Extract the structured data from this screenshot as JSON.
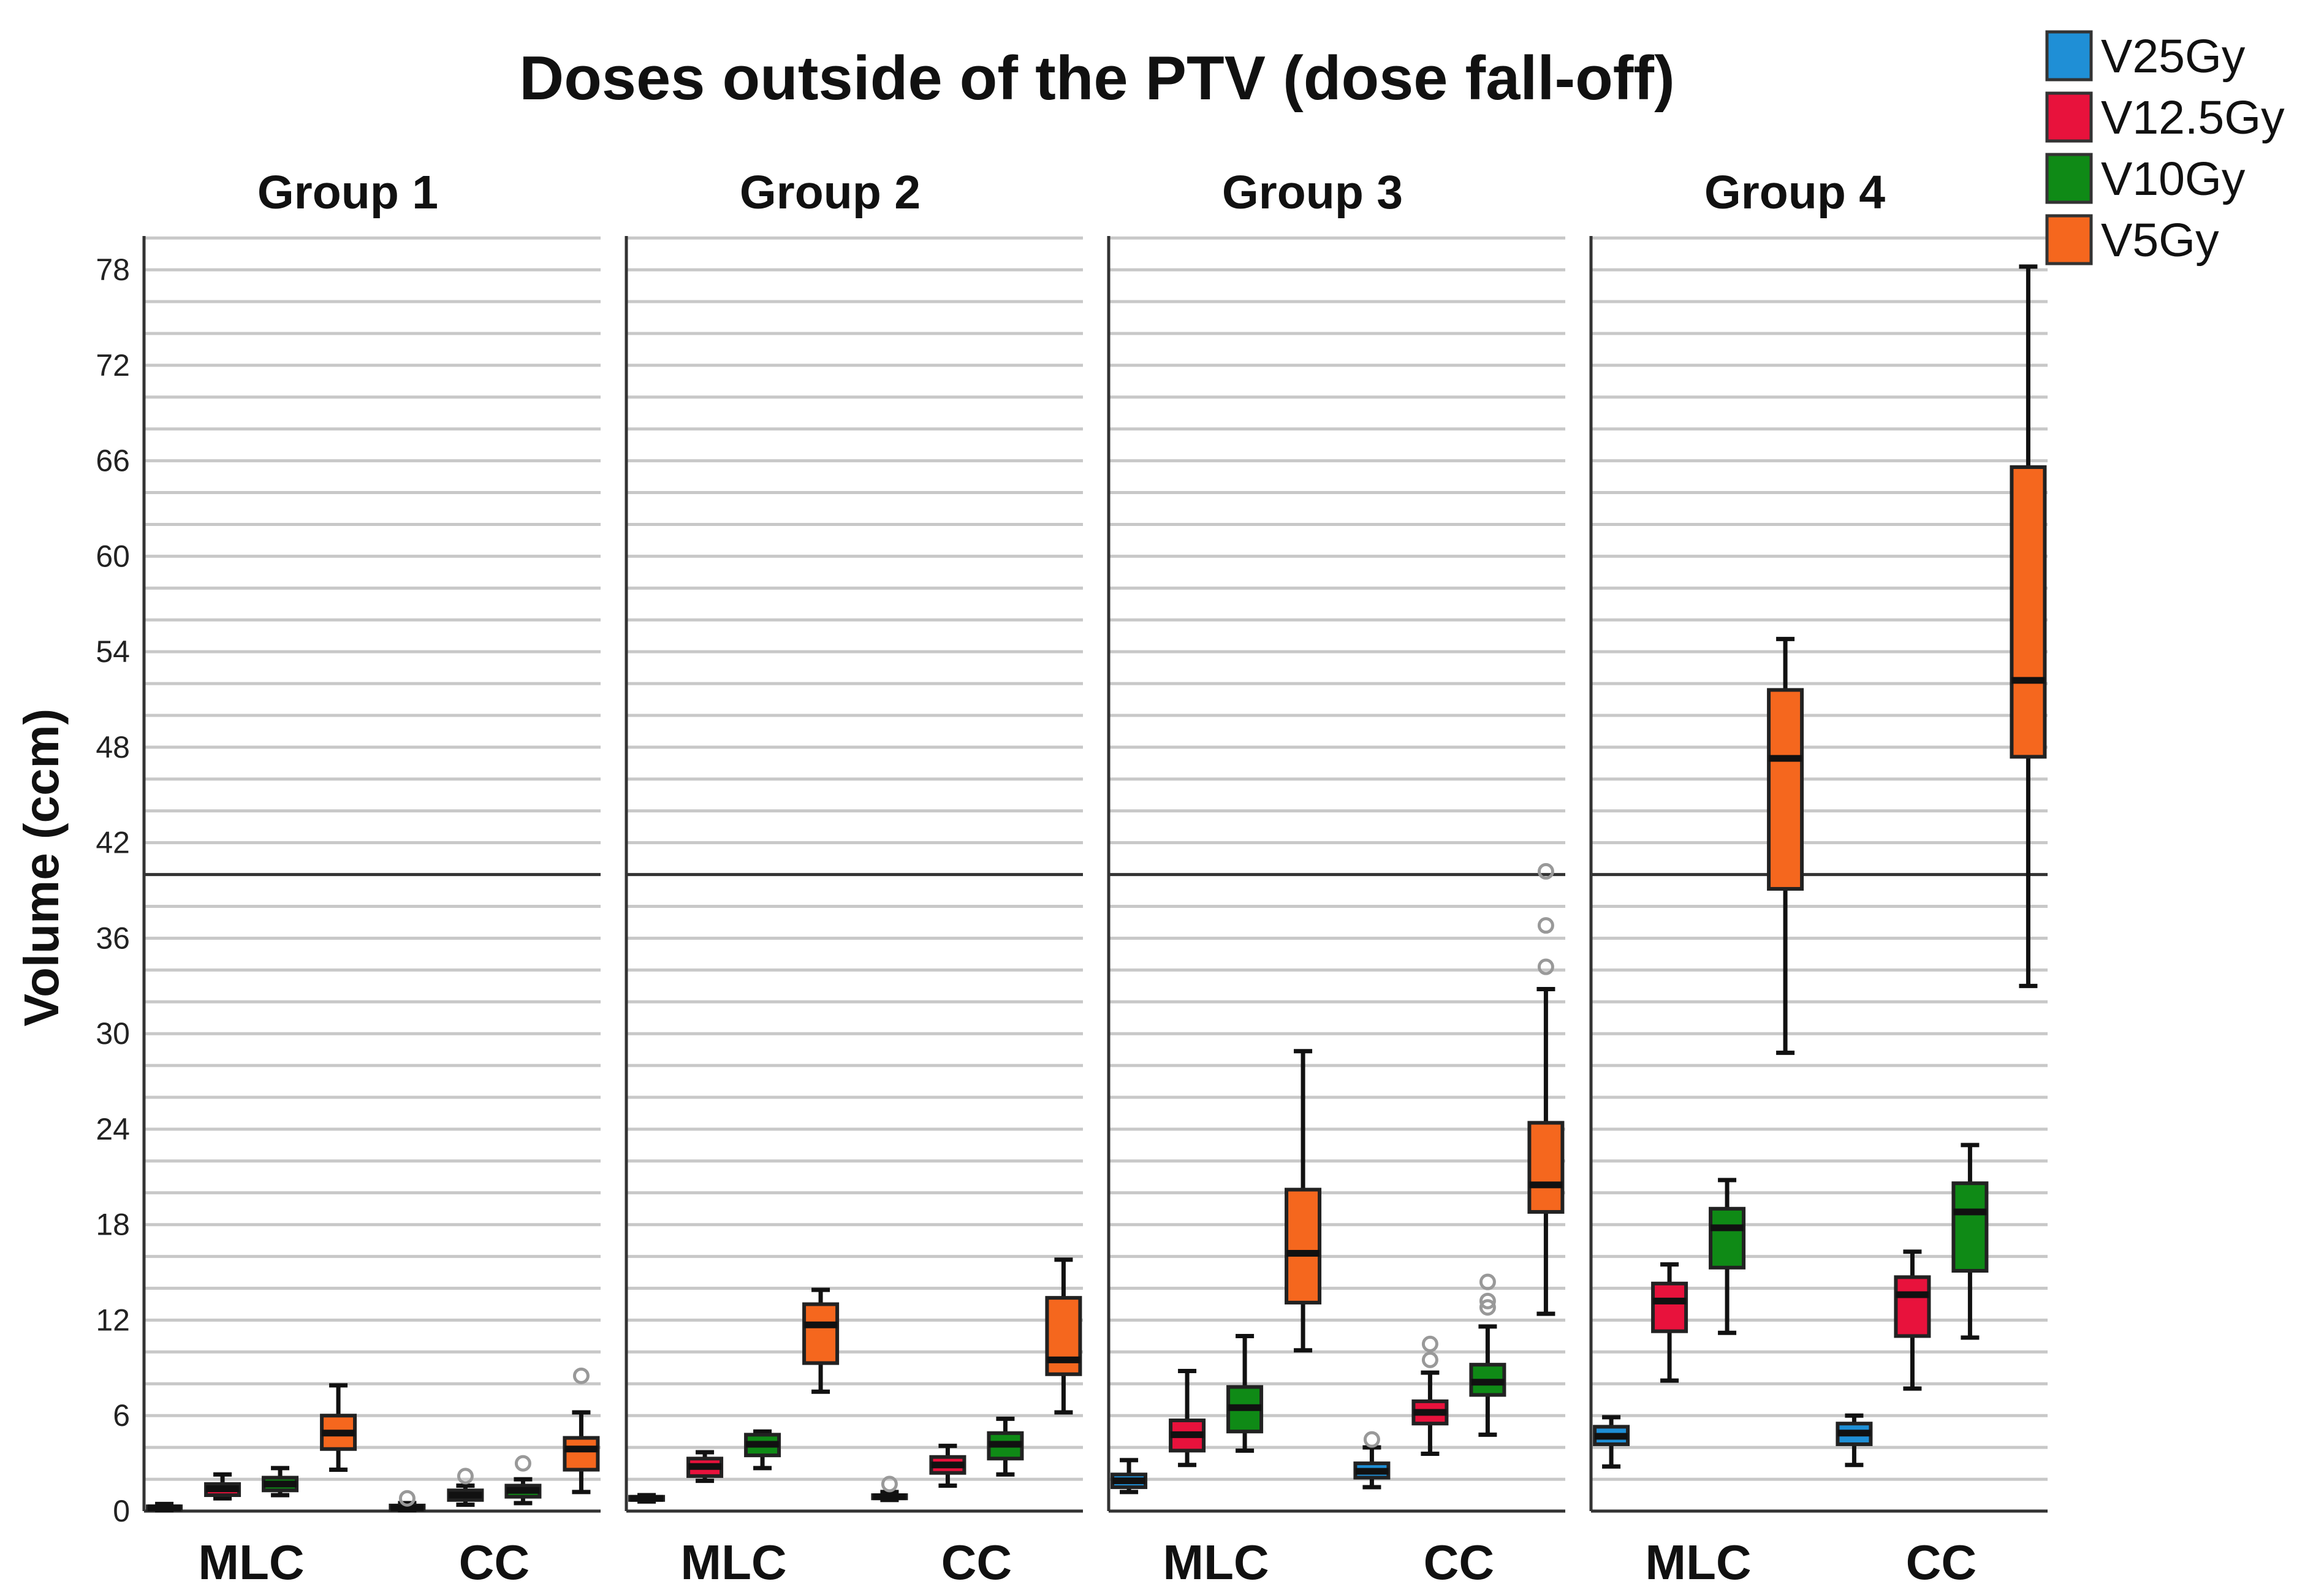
{
  "chart_data": {
    "type": "boxplot",
    "title": "Doses outside of the PTV (dose fall-off)",
    "ylabel": "Volume (ccm)",
    "xlabel": "",
    "ylim": [
      0,
      80
    ],
    "yticks": [
      0,
      6,
      12,
      18,
      24,
      30,
      36,
      42,
      48,
      54,
      60,
      66,
      72,
      78
    ],
    "grid": true,
    "reference_line": 40,
    "legend_position": "top-right",
    "series": [
      {
        "name": "V25Gy",
        "color": "#1f8fd6"
      },
      {
        "name": "V12.5Gy",
        "color": "#e8123c"
      },
      {
        "name": "V10Gy",
        "color": "#0f8a16"
      },
      {
        "name": "V5Gy",
        "color": "#f5671e"
      }
    ],
    "categories": [
      "MLC",
      "CC"
    ],
    "panels": [
      {
        "label": "Group 1",
        "groups": [
          {
            "category": "MLC",
            "boxes": [
              {
                "series": "V25Gy",
                "min": 0.05,
                "q1": 0.1,
                "median": 0.2,
                "q3": 0.3,
                "max": 0.45,
                "outliers": []
              },
              {
                "series": "V12.5Gy",
                "min": 0.8,
                "q1": 1.0,
                "median": 1.4,
                "q3": 1.7,
                "max": 2.3,
                "outliers": []
              },
              {
                "series": "V10Gy",
                "min": 1.0,
                "q1": 1.3,
                "median": 1.7,
                "q3": 2.1,
                "max": 2.7,
                "outliers": []
              },
              {
                "series": "V5Gy",
                "min": 2.6,
                "q1": 3.9,
                "median": 4.9,
                "q3": 6.0,
                "max": 7.9,
                "outliers": []
              }
            ]
          },
          {
            "category": "CC",
            "boxes": [
              {
                "series": "V25Gy",
                "min": 0.05,
                "q1": 0.1,
                "median": 0.2,
                "q3": 0.35,
                "max": 0.5,
                "outliers": [
                  0.8
                ]
              },
              {
                "series": "V12.5Gy",
                "min": 0.4,
                "q1": 0.7,
                "median": 1.0,
                "q3": 1.3,
                "max": 1.6,
                "outliers": [
                  2.2
                ]
              },
              {
                "series": "V10Gy",
                "min": 0.5,
                "q1": 0.9,
                "median": 1.3,
                "q3": 1.6,
                "max": 2.0,
                "outliers": [
                  3.0
                ]
              },
              {
                "series": "V5Gy",
                "min": 1.2,
                "q1": 2.6,
                "median": 3.9,
                "q3": 4.6,
                "max": 6.2,
                "outliers": [
                  8.5
                ]
              }
            ]
          }
        ]
      },
      {
        "label": "Group 2",
        "groups": [
          {
            "category": "MLC",
            "boxes": [
              {
                "series": "V25Gy",
                "min": 0.6,
                "q1": 0.7,
                "median": 0.8,
                "q3": 0.9,
                "max": 1.0,
                "outliers": []
              },
              {
                "series": "V12.5Gy",
                "min": 1.9,
                "q1": 2.2,
                "median": 2.8,
                "q3": 3.3,
                "max": 3.7,
                "outliers": []
              },
              {
                "series": "V10Gy",
                "min": 2.7,
                "q1": 3.5,
                "median": 4.2,
                "q3": 4.8,
                "max": 5.0,
                "outliers": []
              },
              {
                "series": "V5Gy",
                "min": 7.5,
                "q1": 9.3,
                "median": 11.7,
                "q3": 13.0,
                "max": 13.9,
                "outliers": []
              }
            ]
          },
          {
            "category": "CC",
            "boxes": [
              {
                "series": "V25Gy",
                "min": 0.7,
                "q1": 0.8,
                "median": 0.9,
                "q3": 1.0,
                "max": 1.2,
                "outliers": [
                  1.7
                ]
              },
              {
                "series": "V12.5Gy",
                "min": 1.6,
                "q1": 2.4,
                "median": 2.9,
                "q3": 3.4,
                "max": 4.1,
                "outliers": []
              },
              {
                "series": "V10Gy",
                "min": 2.3,
                "q1": 3.3,
                "median": 4.2,
                "q3": 4.9,
                "max": 5.8,
                "outliers": []
              },
              {
                "series": "V5Gy",
                "min": 6.2,
                "q1": 8.6,
                "median": 9.5,
                "q3": 13.4,
                "max": 15.8,
                "outliers": []
              }
            ]
          }
        ]
      },
      {
        "label": "Group 3",
        "groups": [
          {
            "category": "MLC",
            "boxes": [
              {
                "series": "V25Gy",
                "min": 1.2,
                "q1": 1.5,
                "median": 1.9,
                "q3": 2.3,
                "max": 3.2,
                "outliers": []
              },
              {
                "series": "V12.5Gy",
                "min": 2.9,
                "q1": 3.8,
                "median": 4.8,
                "q3": 5.7,
                "max": 8.8,
                "outliers": []
              },
              {
                "series": "V10Gy",
                "min": 3.8,
                "q1": 5.0,
                "median": 6.5,
                "q3": 7.8,
                "max": 11.0,
                "outliers": []
              },
              {
                "series": "V5Gy",
                "min": 10.1,
                "q1": 13.1,
                "median": 16.2,
                "q3": 20.2,
                "max": 28.9,
                "outliers": []
              }
            ]
          },
          {
            "category": "CC",
            "boxes": [
              {
                "series": "V25Gy",
                "min": 1.5,
                "q1": 2.1,
                "median": 2.5,
                "q3": 3.0,
                "max": 4.0,
                "outliers": [
                  4.5
                ]
              },
              {
                "series": "V12.5Gy",
                "min": 3.6,
                "q1": 5.5,
                "median": 6.2,
                "q3": 6.9,
                "max": 8.7,
                "outliers": [
                  9.5,
                  10.5
                ]
              },
              {
                "series": "V10Gy",
                "min": 4.8,
                "q1": 7.3,
                "median": 8.1,
                "q3": 9.2,
                "max": 11.6,
                "outliers": [
                  12.8,
                  13.2,
                  14.4
                ]
              },
              {
                "series": "V5Gy",
                "min": 12.4,
                "q1": 18.8,
                "median": 20.5,
                "q3": 24.4,
                "max": 32.8,
                "outliers": [
                  34.2,
                  36.8,
                  40.2
                ]
              }
            ]
          }
        ]
      },
      {
        "label": "Group 4",
        "groups": [
          {
            "category": "MLC",
            "boxes": [
              {
                "series": "V25Gy",
                "min": 2.8,
                "q1": 4.2,
                "median": 4.7,
                "q3": 5.3,
                "max": 5.9,
                "outliers": []
              },
              {
                "series": "V12.5Gy",
                "min": 8.2,
                "q1": 11.3,
                "median": 13.2,
                "q3": 14.3,
                "max": 15.5,
                "outliers": []
              },
              {
                "series": "V10Gy",
                "min": 11.2,
                "q1": 15.3,
                "median": 17.8,
                "q3": 19.0,
                "max": 20.8,
                "outliers": []
              },
              {
                "series": "V5Gy",
                "min": 28.8,
                "q1": 39.1,
                "median": 47.3,
                "q3": 51.6,
                "max": 54.8,
                "outliers": []
              }
            ]
          },
          {
            "category": "CC",
            "boxes": [
              {
                "series": "V25Gy",
                "min": 2.9,
                "q1": 4.2,
                "median": 4.9,
                "q3": 5.5,
                "max": 6.0,
                "outliers": []
              },
              {
                "series": "V12.5Gy",
                "min": 7.7,
                "q1": 11.0,
                "median": 13.6,
                "q3": 14.7,
                "max": 16.3,
                "outliers": []
              },
              {
                "series": "V10Gy",
                "min": 10.9,
                "q1": 15.1,
                "median": 18.8,
                "q3": 20.6,
                "max": 23.0,
                "outliers": []
              },
              {
                "series": "V5Gy",
                "min": 33.0,
                "q1": 47.4,
                "median": 52.2,
                "q3": 65.6,
                "max": 78.2,
                "outliers": []
              }
            ]
          }
        ]
      }
    ]
  }
}
